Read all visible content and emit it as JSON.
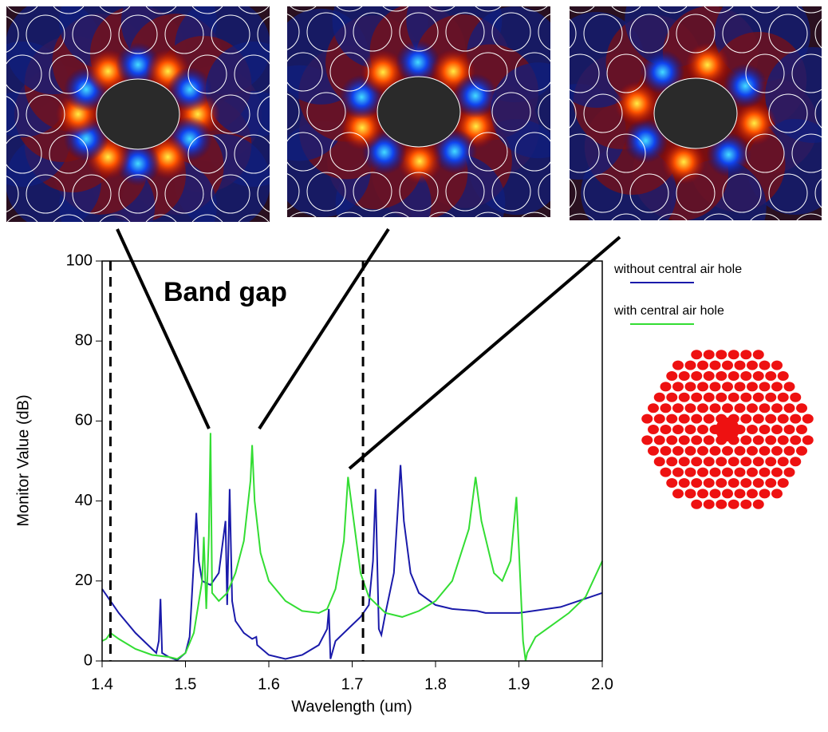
{
  "chart_data": {
    "type": "line",
    "x_label": "Wavelength (um)",
    "y_label": "Monitor Value (dB)",
    "annotation": "Band gap",
    "band_gap_lines": [
      1.41,
      1.713
    ],
    "xlim": [
      1.4,
      2.0
    ],
    "xticks": [
      1.4,
      1.5,
      1.6,
      1.7,
      1.8,
      1.9,
      {
        "value": 2.0,
        "label": "2.0"
      }
    ],
    "ylim": [
      0,
      100
    ],
    "yticks": [
      0,
      20,
      40,
      60,
      80,
      100
    ],
    "series": [
      {
        "name": "without central air hole",
        "color": "#1a1aaa",
        "x": [
          1.4,
          1.41,
          1.42,
          1.44,
          1.46,
          1.465,
          1.468,
          1.47,
          1.472,
          1.48,
          1.49,
          1.5,
          1.505,
          1.51,
          1.513,
          1.516,
          1.52,
          1.53,
          1.54,
          1.548,
          1.55,
          1.553,
          1.556,
          1.56,
          1.57,
          1.58,
          1.585,
          1.586,
          1.6,
          1.62,
          1.64,
          1.66,
          1.67,
          1.672,
          1.674,
          1.68,
          1.7,
          1.71,
          1.72,
          1.725,
          1.728,
          1.732,
          1.735,
          1.74,
          1.75,
          1.758,
          1.762,
          1.77,
          1.78,
          1.8,
          1.82,
          1.85,
          1.86,
          1.88,
          1.9,
          1.95,
          2.0
        ],
        "values": [
          18,
          15,
          12,
          7,
          3,
          2,
          5,
          15.5,
          2,
          1,
          0.2,
          2,
          6,
          25,
          37,
          25,
          20,
          19,
          22,
          35,
          14,
          43,
          15,
          10,
          7,
          5.5,
          6,
          4,
          1.5,
          0.5,
          1.5,
          4,
          8,
          13,
          0.5,
          5,
          9,
          11,
          14,
          25,
          43,
          8,
          6.5,
          12,
          22,
          49,
          35,
          22,
          17,
          14,
          13,
          12.5,
          12,
          12,
          12,
          13.5,
          17
        ]
      },
      {
        "name": "with central air hole",
        "color": "#33dd33",
        "x": [
          1.4,
          1.405,
          1.41,
          1.42,
          1.44,
          1.46,
          1.48,
          1.49,
          1.5,
          1.51,
          1.52,
          1.522,
          1.525,
          1.528,
          1.53,
          1.532,
          1.54,
          1.55,
          1.56,
          1.57,
          1.578,
          1.58,
          1.583,
          1.59,
          1.6,
          1.62,
          1.64,
          1.66,
          1.67,
          1.68,
          1.69,
          1.695,
          1.7,
          1.71,
          1.72,
          1.74,
          1.76,
          1.78,
          1.8,
          1.82,
          1.84,
          1.848,
          1.855,
          1.87,
          1.88,
          1.89,
          1.897,
          1.9,
          1.905,
          1.908,
          1.91,
          1.92,
          1.94,
          1.96,
          1.98,
          2.0
        ],
        "values": [
          5,
          5.5,
          7,
          5.5,
          3,
          1.5,
          1,
          0.5,
          2,
          7,
          20,
          31,
          13,
          31,
          57,
          17,
          15,
          17,
          22,
          30,
          45,
          54,
          40,
          27,
          20,
          15,
          12.5,
          12,
          13,
          18,
          30,
          46,
          38,
          22,
          16,
          12,
          11,
          12.5,
          15,
          20,
          33,
          46,
          35,
          22,
          20,
          25,
          41,
          28,
          5,
          0,
          2,
          6,
          9,
          12,
          16,
          25
        ]
      }
    ]
  }
}
